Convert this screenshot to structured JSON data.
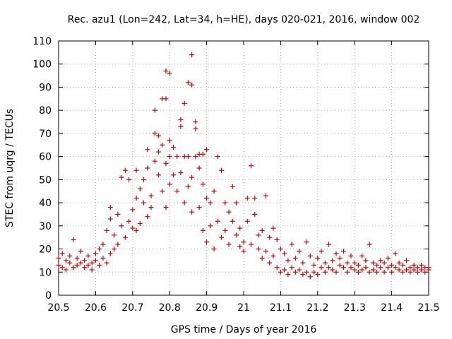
{
  "chart_data": {
    "type": "scatter",
    "title": "Rec. azu1 (Lon=242, Lat=34, h=HE), days 020-021, 2016, window 002",
    "xlabel": "GPS time / Days of year 2016",
    "ylabel": "STEC from uqrg / TECUs",
    "xlim": [
      20.5,
      21.5
    ],
    "ylim": [
      0,
      110
    ],
    "xticks": [
      20.5,
      20.6,
      20.7,
      20.8,
      20.9,
      21,
      21.1,
      21.2,
      21.3,
      21.4,
      21.5
    ],
    "xtick_labels": [
      "20.5",
      "20.6",
      "20.7",
      "20.8",
      "20.9",
      "21",
      "21.1",
      "21.2",
      "21.3",
      "21.4",
      "21.5"
    ],
    "yticks": [
      0,
      10,
      20,
      30,
      40,
      50,
      60,
      70,
      80,
      90,
      100,
      110
    ],
    "ytick_labels": [
      "0",
      "10",
      "20",
      "30",
      "40",
      "50",
      "60",
      "70",
      "80",
      "90",
      "100",
      "110"
    ],
    "marker": "+",
    "color": "#cc0000",
    "series": [
      {
        "name": "STEC",
        "points": [
          [
            20.5,
            16
          ],
          [
            20.5,
            13
          ],
          [
            20.51,
            18
          ],
          [
            20.51,
            12
          ],
          [
            20.52,
            15
          ],
          [
            20.52,
            11
          ],
          [
            20.53,
            14
          ],
          [
            20.53,
            17
          ],
          [
            20.54,
            12
          ],
          [
            20.54,
            24
          ],
          [
            20.55,
            13
          ],
          [
            20.55,
            16
          ],
          [
            20.56,
            14
          ],
          [
            20.56,
            19
          ],
          [
            20.57,
            12
          ],
          [
            20.57,
            15
          ],
          [
            20.58,
            13
          ],
          [
            20.58,
            17
          ],
          [
            20.59,
            14
          ],
          [
            20.59,
            11
          ],
          [
            20.6,
            15
          ],
          [
            20.6,
            18
          ],
          [
            20.61,
            13
          ],
          [
            20.61,
            20
          ],
          [
            20.62,
            16
          ],
          [
            20.62,
            22
          ],
          [
            20.63,
            14
          ],
          [
            20.63,
            28
          ],
          [
            20.64,
            18
          ],
          [
            20.64,
            38
          ],
          [
            20.64,
            33
          ],
          [
            20.65,
            20
          ],
          [
            20.65,
            26
          ],
          [
            20.66,
            35
          ],
          [
            20.66,
            22
          ],
          [
            20.67,
            51
          ],
          [
            20.67,
            30
          ],
          [
            20.68,
            54
          ],
          [
            20.68,
            25
          ],
          [
            20.69,
            50
          ],
          [
            20.69,
            32
          ],
          [
            20.7,
            29
          ],
          [
            20.7,
            37
          ],
          [
            20.71,
            42
          ],
          [
            20.71,
            54
          ],
          [
            20.71,
            28
          ],
          [
            20.72,
            31
          ],
          [
            20.72,
            46
          ],
          [
            20.73,
            50
          ],
          [
            20.73,
            40
          ],
          [
            20.74,
            55
          ],
          [
            20.74,
            63
          ],
          [
            20.74,
            34
          ],
          [
            20.75,
            43
          ],
          [
            20.75,
            38
          ],
          [
            20.76,
            58
          ],
          [
            20.76,
            80
          ],
          [
            20.76,
            70
          ],
          [
            20.77,
            62
          ],
          [
            20.77,
            69
          ],
          [
            20.77,
            52
          ],
          [
            20.78,
            85
          ],
          [
            20.78,
            65
          ],
          [
            20.78,
            45
          ],
          [
            20.79,
            85
          ],
          [
            20.79,
            97
          ],
          [
            20.79,
            57
          ],
          [
            20.79,
            38
          ],
          [
            20.8,
            96
          ],
          [
            20.8,
            67
          ],
          [
            20.8,
            60
          ],
          [
            20.8,
            48
          ],
          [
            20.81,
            64
          ],
          [
            20.81,
            52
          ],
          [
            20.82,
            60
          ],
          [
            20.82,
            45
          ],
          [
            20.83,
            76
          ],
          [
            20.83,
            73
          ],
          [
            20.83,
            53
          ],
          [
            20.84,
            83
          ],
          [
            20.84,
            60
          ],
          [
            20.84,
            40
          ],
          [
            20.85,
            92
          ],
          [
            20.85,
            60
          ],
          [
            20.85,
            47
          ],
          [
            20.86,
            104
          ],
          [
            20.86,
            91
          ],
          [
            20.86,
            51
          ],
          [
            20.86,
            36
          ],
          [
            20.87,
            75
          ],
          [
            20.87,
            72
          ],
          [
            20.87,
            60
          ],
          [
            20.88,
            61
          ],
          [
            20.88,
            55
          ],
          [
            20.88,
            38
          ],
          [
            20.89,
            61
          ],
          [
            20.89,
            48
          ],
          [
            20.89,
            28
          ],
          [
            20.9,
            63
          ],
          [
            20.9,
            42
          ],
          [
            20.9,
            23
          ],
          [
            20.91,
            40
          ],
          [
            20.91,
            30
          ],
          [
            20.92,
            45
          ],
          [
            20.92,
            20
          ],
          [
            20.93,
            60
          ],
          [
            20.93,
            32
          ],
          [
            20.94,
            54
          ],
          [
            20.94,
            25
          ],
          [
            20.95,
            40
          ],
          [
            20.95,
            28
          ],
          [
            20.96,
            36
          ],
          [
            20.96,
            22
          ],
          [
            20.97,
            47
          ],
          [
            20.97,
            32
          ],
          [
            20.98,
            40
          ],
          [
            20.98,
            26
          ],
          [
            20.99,
            29
          ],
          [
            20.99,
            21
          ],
          [
            21.0,
            23
          ],
          [
            21.0,
            19
          ],
          [
            21.01,
            42
          ],
          [
            21.01,
            32
          ],
          [
            21.02,
            56
          ],
          [
            21.02,
            22
          ],
          [
            21.03,
            42
          ],
          [
            21.03,
            35
          ],
          [
            21.04,
            26
          ],
          [
            21.04,
            20
          ],
          [
            21.05,
            28
          ],
          [
            21.05,
            16
          ],
          [
            21.06,
            43
          ],
          [
            21.06,
            19
          ],
          [
            21.07,
            25
          ],
          [
            21.07,
            14
          ],
          [
            21.08,
            29
          ],
          [
            21.08,
            17
          ],
          [
            21.09,
            24
          ],
          [
            21.09,
            12
          ],
          [
            21.1,
            20
          ],
          [
            21.1,
            10
          ],
          [
            21.11,
            18
          ],
          [
            21.11,
            11
          ],
          [
            21.12,
            15
          ],
          [
            21.12,
            9
          ],
          [
            21.13,
            22
          ],
          [
            21.13,
            12
          ],
          [
            21.14,
            16
          ],
          [
            21.14,
            10
          ],
          [
            21.15,
            19
          ],
          [
            21.15,
            11
          ],
          [
            21.16,
            14
          ],
          [
            21.16,
            9
          ],
          [
            21.17,
            23
          ],
          [
            21.17,
            10
          ],
          [
            21.18,
            17
          ],
          [
            21.18,
            8
          ],
          [
            21.19,
            13
          ],
          [
            21.19,
            10
          ],
          [
            21.2,
            16
          ],
          [
            21.2,
            9
          ],
          [
            21.21,
            12
          ],
          [
            21.21,
            19
          ],
          [
            21.22,
            14
          ],
          [
            21.22,
            10
          ],
          [
            21.23,
            22
          ],
          [
            21.23,
            12
          ],
          [
            21.24,
            15
          ],
          [
            21.24,
            11
          ],
          [
            21.25,
            18
          ],
          [
            21.25,
            10
          ],
          [
            21.26,
            13
          ],
          [
            21.26,
            16
          ],
          [
            21.27,
            12
          ],
          [
            21.27,
            19
          ],
          [
            21.28,
            14
          ],
          [
            21.28,
            10
          ],
          [
            21.29,
            12
          ],
          [
            21.29,
            17
          ],
          [
            21.3,
            11
          ],
          [
            21.3,
            14
          ],
          [
            21.31,
            13
          ],
          [
            21.31,
            10
          ],
          [
            21.32,
            17
          ],
          [
            21.32,
            11
          ],
          [
            21.33,
            12
          ],
          [
            21.33,
            15
          ],
          [
            21.34,
            10
          ],
          [
            21.34,
            22
          ],
          [
            21.35,
            14
          ],
          [
            21.35,
            11
          ],
          [
            21.36,
            13
          ],
          [
            21.36,
            10
          ],
          [
            21.37,
            15
          ],
          [
            21.37,
            12
          ],
          [
            21.38,
            14
          ],
          [
            21.38,
            10
          ],
          [
            21.39,
            12
          ],
          [
            21.39,
            16
          ],
          [
            21.4,
            13
          ],
          [
            21.4,
            10
          ],
          [
            21.41,
            18
          ],
          [
            21.41,
            12
          ],
          [
            21.42,
            14
          ],
          [
            21.42,
            11
          ],
          [
            21.43,
            13
          ],
          [
            21.43,
            10
          ],
          [
            21.44,
            15
          ],
          [
            21.44,
            11
          ],
          [
            21.45,
            12
          ],
          [
            21.45,
            10
          ],
          [
            21.46,
            13
          ],
          [
            21.46,
            11
          ],
          [
            21.47,
            12
          ],
          [
            21.47,
            10
          ],
          [
            21.48,
            11
          ],
          [
            21.48,
            13
          ],
          [
            21.49,
            12
          ],
          [
            21.49,
            10
          ],
          [
            21.5,
            11
          ],
          [
            21.5,
            12
          ]
        ]
      }
    ]
  }
}
